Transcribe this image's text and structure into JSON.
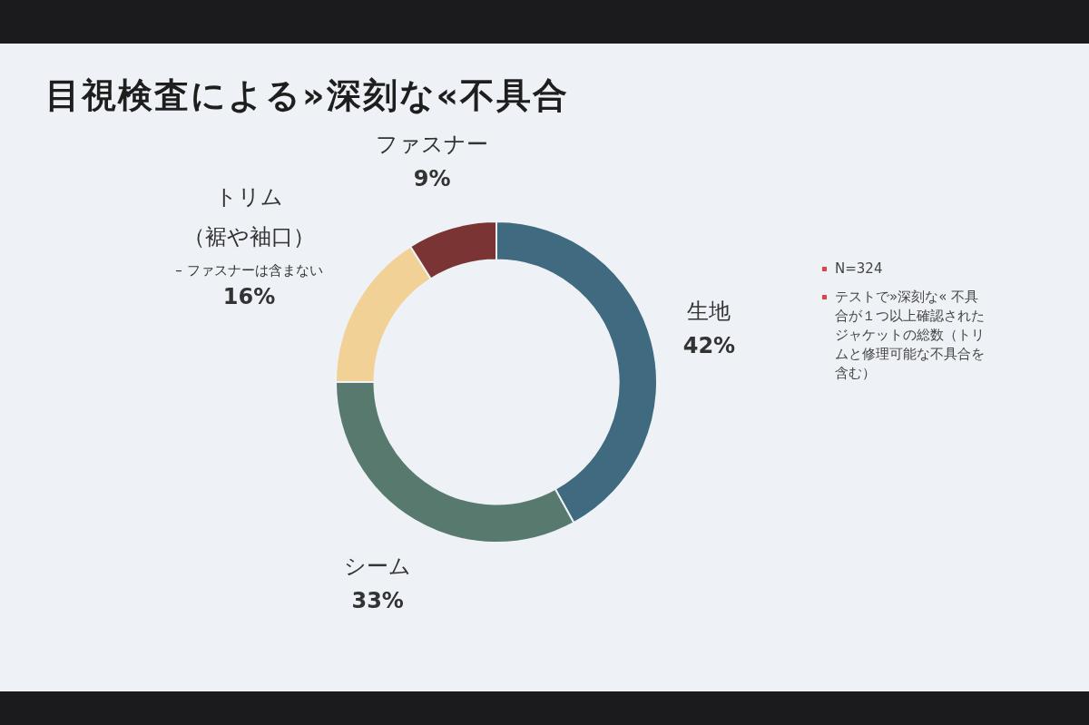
{
  "chart_data": {
    "type": "donut",
    "title": "目視検査による»深刻な«不具合",
    "categories": [
      "生地",
      "シーム",
      "トリム（裾や袖口）",
      "ファスナー"
    ],
    "values": [
      42,
      33,
      16,
      9
    ],
    "value_labels": [
      "42%",
      "33%",
      "16%",
      "9%"
    ],
    "colors": [
      "#3f6a80",
      "#587a6e",
      "#f1d196",
      "#7a3434"
    ],
    "legend": false,
    "annotations": [
      {
        "text": "– ファスナーは含まない",
        "x": "トリム（裾や袖口）"
      },
      "N=324",
      "テストで»深刻な« 不具合が１つ以上確認されたジャケットの総数（トリムと修理可能な不具合を含む）"
    ]
  }
}
